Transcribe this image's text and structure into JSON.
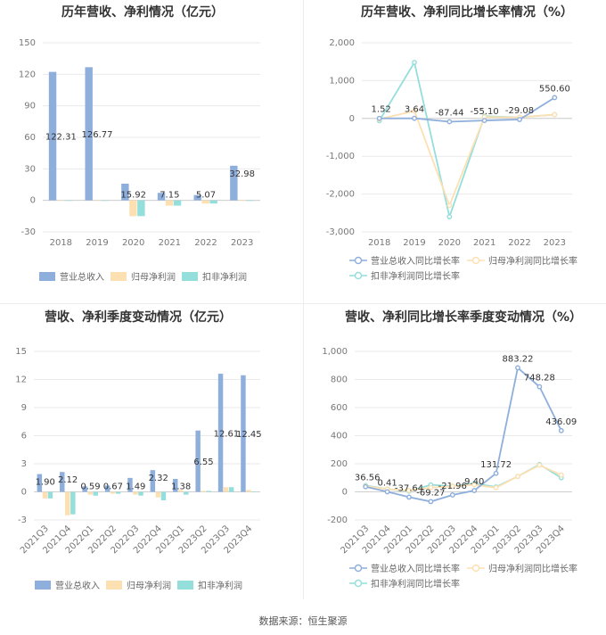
{
  "footer": "数据来源：恒生聚源",
  "colors": {
    "revenue": "#8eaedc",
    "net_profit": "#fde0b2",
    "deducted_profit": "#94dedb",
    "grid": "#e9e9e9",
    "text": "#444444"
  },
  "chart_data": [
    {
      "type": "bar",
      "title": "历年营收、净利情况（亿元）",
      "categories": [
        "2018",
        "2019",
        "2020",
        "2021",
        "2022",
        "2023"
      ],
      "y_ticks": [
        -30,
        0,
        30,
        60,
        90,
        120,
        150
      ],
      "ylim": [
        -30,
        150
      ],
      "series": [
        {
          "name": "营业总收入",
          "values": [
            122.31,
            126.77,
            15.92,
            7.15,
            5.07,
            32.98
          ]
        },
        {
          "name": "归母净利润",
          "values": [
            0,
            0,
            -15,
            -5,
            -3,
            0.5
          ]
        },
        {
          "name": "扣非净利润",
          "values": [
            0,
            0,
            -15,
            -5,
            -3,
            -0.5
          ]
        }
      ],
      "data_labels": [
        "122.31",
        "126.77",
        "15.92",
        "7.15",
        "5.07",
        "32.98"
      ],
      "legend": "bottom"
    },
    {
      "type": "line",
      "title": "历年营收、净利同比增长率情况（%）",
      "categories": [
        "2018",
        "2019",
        "2020",
        "2021",
        "2022",
        "2023"
      ],
      "y_ticks": [
        -3000,
        -2000,
        -1000,
        0,
        1000,
        2000
      ],
      "y_tick_labels": [
        "-3,000",
        "-2,000",
        "-1,000",
        "0",
        "1,000",
        "2,000"
      ],
      "ylim": [
        -3000,
        2000
      ],
      "series": [
        {
          "name": "营业总收入同比增长率",
          "values": [
            1.52,
            3.64,
            -87.44,
            -55.1,
            -29.08,
            550.6
          ]
        },
        {
          "name": "归母净利润同比增长率",
          "values": [
            -20,
            200,
            -2300,
            40,
            30,
            100
          ]
        },
        {
          "name": "扣非净利润同比增长率",
          "values": [
            -60,
            1480,
            -2600,
            60,
            30,
            100
          ]
        }
      ],
      "data_labels": [
        "1.52",
        "3.64",
        "-87.44",
        "-55.10",
        "-29.08",
        "550.60"
      ],
      "legend": "bottom"
    },
    {
      "type": "bar",
      "title": "营收、净利季度变动情况（亿元）",
      "categories": [
        "2021Q3",
        "2021Q4",
        "2022Q1",
        "2022Q2",
        "2022Q3",
        "2022Q4",
        "2023Q1",
        "2023Q2",
        "2023Q3",
        "2023Q4"
      ],
      "y_ticks": [
        -3,
        0,
        3,
        6,
        9,
        12,
        15
      ],
      "ylim": [
        -3,
        15
      ],
      "series": [
        {
          "name": "营业总收入",
          "values": [
            1.9,
            2.12,
            0.59,
            0.67,
            1.49,
            2.32,
            1.38,
            6.55,
            12.61,
            12.45
          ]
        },
        {
          "name": "归母净利润",
          "values": [
            -0.7,
            -2.5,
            -0.3,
            -0.2,
            -0.3,
            -0.6,
            0.2,
            0.1,
            0.5,
            0.2
          ]
        },
        {
          "name": "扣非净利润",
          "values": [
            -0.7,
            -2.4,
            -0.4,
            -0.2,
            -0.4,
            -0.9,
            -0.3,
            0.1,
            0.5,
            0.0
          ]
        }
      ],
      "data_labels": [
        "1.90",
        "2.12",
        "0.59",
        "0.67",
        "1.49",
        "2.32",
        "1.38",
        "6.55",
        "12.61",
        "12.45"
      ],
      "legend": "bottom"
    },
    {
      "type": "line",
      "title": "营收、净利同比增长率季度变动情况（%）",
      "categories": [
        "2021Q3",
        "2021Q4",
        "2022Q1",
        "2022Q2",
        "2022Q3",
        "2022Q4",
        "2023Q1",
        "2023Q2",
        "2023Q3",
        "2023Q4"
      ],
      "y_ticks": [
        -200,
        0,
        200,
        400,
        600,
        800,
        1000
      ],
      "y_tick_labels": [
        "-200",
        "0",
        "200",
        "400",
        "600",
        "800",
        "1,000"
      ],
      "ylim": [
        -200,
        1000
      ],
      "series": [
        {
          "name": "营业总收入同比增长率",
          "values": [
            36.56,
            0.41,
            -37.64,
            -69.27,
            -21.96,
            9.4,
            131.72,
            883.22,
            748.28,
            436.09
          ]
        },
        {
          "name": "归母净利润同比增长率",
          "values": [
            40,
            20,
            10,
            30,
            40,
            50,
            30,
            110,
            190,
            120
          ]
        },
        {
          "name": "扣非净利润同比增长率",
          "values": [
            45,
            20,
            5,
            50,
            40,
            60,
            35,
            110,
            195,
            100
          ]
        }
      ],
      "data_labels": [
        "36.56",
        "0.41",
        "-37.64",
        "-69.27",
        "-21.96",
        "9.40",
        "131.72",
        "883.22",
        "748.28",
        "436.09"
      ],
      "legend": "bottom"
    }
  ]
}
